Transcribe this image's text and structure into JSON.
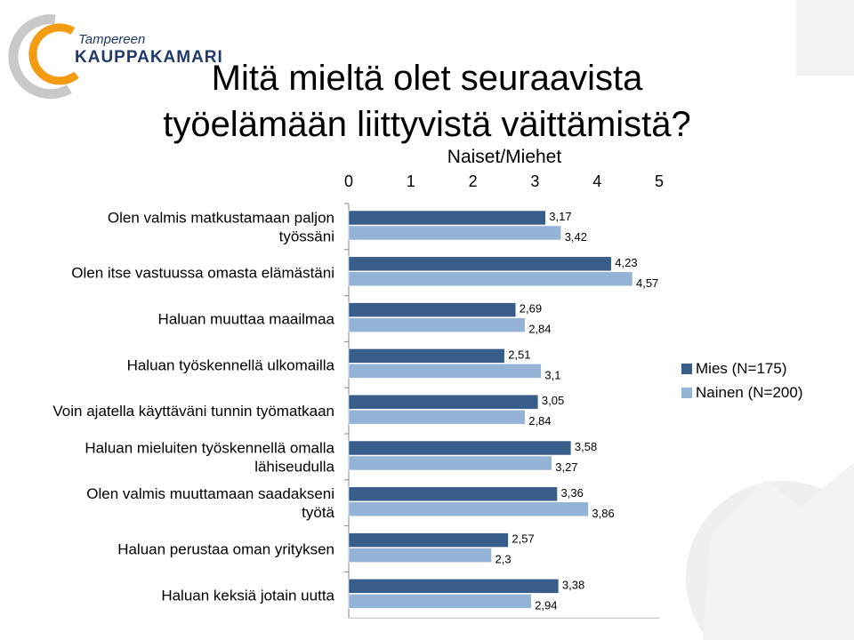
{
  "brand": {
    "logo_line1": "Tampereen",
    "logo_line2": "KAUPPAKAMARI",
    "colors": {
      "orange": "#F39C12",
      "navy": "#1F3A6B",
      "gray": "#C9C9C9"
    }
  },
  "slide": {
    "title_line1": "Mitä mieltä olet seuraavista",
    "title_line2": "työelämään liittyvistä väittämistä?"
  },
  "chart_data": {
    "type": "bar",
    "orientation": "horizontal",
    "title": "Naiset/Miehet",
    "xlim": [
      0,
      5
    ],
    "xticks": [
      "0",
      "1",
      "2",
      "3",
      "4",
      "5"
    ],
    "grid": false,
    "legend_position": "right",
    "categories": [
      "Olen valmis matkustamaan paljon työssäni",
      "Olen itse vastuussa omasta elämästäni",
      "Haluan muuttaa maailmaa",
      "Haluan työskennellä ulkomailla",
      "Voin ajatella käyttäväni tunnin työmatkaan",
      "Haluan mieluiten työskennellä omalla lähiseudulla",
      "Olen valmis muuttamaan saadakseni työtä",
      "Haluan perustaa oman yrityksen",
      "Haluan keksiä jotain uutta"
    ],
    "category_lines": [
      [
        "Olen valmis matkustamaan paljon",
        "työssäni"
      ],
      [
        "Olen itse vastuussa omasta elämästäni"
      ],
      [
        "Haluan muuttaa maailmaa"
      ],
      [
        "Haluan työskennellä ulkomailla"
      ],
      [
        "Voin ajatella käyttäväni tunnin työmatkaan"
      ],
      [
        "Haluan mieluiten työskennellä omalla",
        "lähiseudulla"
      ],
      [
        "Olen valmis muuttamaan saadakseni",
        "työtä"
      ],
      [
        "Haluan perustaa oman yrityksen"
      ],
      [
        "Haluan keksiä jotain uutta"
      ]
    ],
    "series": [
      {
        "name": "Mies (N=175)",
        "color": "#385D8A",
        "values": [
          3.17,
          4.23,
          2.69,
          2.51,
          3.05,
          3.58,
          3.36,
          2.57,
          3.38
        ],
        "labels": [
          "3,17",
          "4,23",
          "2,69",
          "2,51",
          "3,05",
          "3,58",
          "3,36",
          "2,57",
          "3,38"
        ]
      },
      {
        "name": "Nainen (N=200)",
        "color": "#95B3D7",
        "values": [
          3.42,
          4.57,
          2.84,
          3.1,
          2.84,
          3.27,
          3.86,
          2.3,
          2.94
        ],
        "labels": [
          "3,42",
          "4,57",
          "2,84",
          "3,1",
          "2,84",
          "3,27",
          "3,86",
          "2,3",
          "2,94"
        ]
      }
    ]
  }
}
